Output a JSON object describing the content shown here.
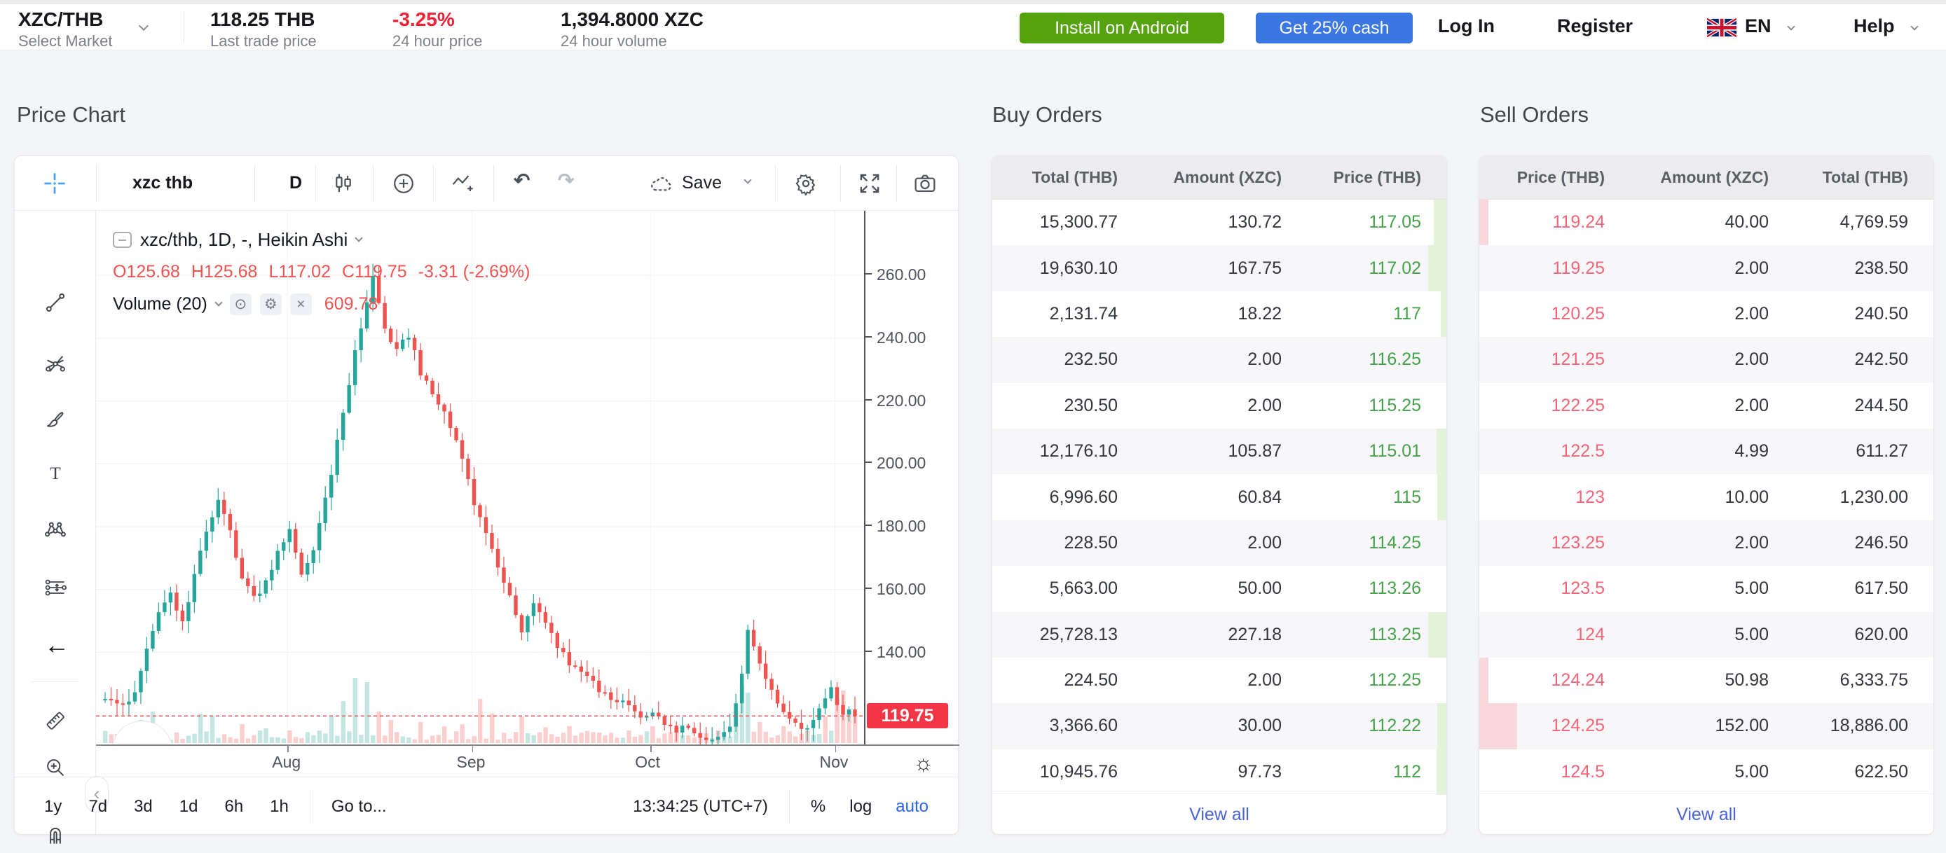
{
  "header": {
    "pair": "XZC/THB",
    "select_market": "Select Market",
    "last_price": "118.25 THB",
    "last_price_label": "Last trade price",
    "change": "-3.25%",
    "change_label": "24 hour price",
    "volume": "1,394.8000 XZC",
    "volume_label": "24 hour volume",
    "install_button": "Install on Android",
    "cash_button": "Get 25% cash",
    "login": "Log In",
    "register": "Register",
    "language": "EN",
    "help": "Help"
  },
  "sections": {
    "price_chart": "Price Chart",
    "buy_orders": "Buy Orders",
    "sell_orders": "Sell Orders"
  },
  "chart": {
    "toolbar": {
      "symbol": "xzc thb",
      "interval": "D",
      "save": "Save"
    },
    "legend": {
      "series": "xzc/thb, 1D, -, Heikin Ashi",
      "o": "O125.68",
      "h": "H125.68",
      "l": "L117.02",
      "c": "C119.75",
      "change": "-3.31 (-2.69%)",
      "volume_label": "Volume (20)",
      "volume_value": "609.78"
    },
    "bottom": {
      "ranges": [
        "1y",
        "7d",
        "3d",
        "1d",
        "6h",
        "1h"
      ],
      "goto": "Go to...",
      "clock": "13:34:25 (UTC+7)",
      "percent": "%",
      "log": "log",
      "auto": "auto"
    }
  },
  "chart_data": {
    "type": "candlestick",
    "title": "xzc/thb, 1D, Heikin Ashi",
    "ylabel": "Price (THB)",
    "y_ticks": [
      260,
      240,
      220,
      200,
      180,
      160,
      140
    ],
    "price_top": 280.5,
    "price_bottom": 110.7,
    "last_price": 119.75,
    "last_price_label": "119.75",
    "x_months": [
      "Aug",
      "Sep",
      "Oct",
      "Nov"
    ],
    "month_start_indices": [
      31,
      62,
      92,
      123
    ],
    "n_candles": 127,
    "price_path": [
      [
        0,
        125
      ],
      [
        3,
        124
      ],
      [
        5,
        127
      ],
      [
        7,
        141
      ],
      [
        9,
        153
      ],
      [
        11,
        158
      ],
      [
        13,
        150
      ],
      [
        15,
        164
      ],
      [
        17,
        179
      ],
      [
        19,
        189
      ],
      [
        21,
        179
      ],
      [
        23,
        163
      ],
      [
        25,
        157
      ],
      [
        27,
        162
      ],
      [
        29,
        172
      ],
      [
        31,
        179
      ],
      [
        33,
        165
      ],
      [
        35,
        172
      ],
      [
        38,
        197
      ],
      [
        40,
        216
      ],
      [
        42,
        235
      ],
      [
        44,
        251
      ],
      [
        45,
        260
      ],
      [
        47,
        243
      ],
      [
        49,
        236
      ],
      [
        51,
        241
      ],
      [
        53,
        229
      ],
      [
        55,
        223
      ],
      [
        57,
        217
      ],
      [
        59,
        208
      ],
      [
        61,
        195
      ],
      [
        62,
        187
      ],
      [
        64,
        177
      ],
      [
        66,
        167
      ],
      [
        68,
        158
      ],
      [
        70,
        147
      ],
      [
        72,
        156
      ],
      [
        74,
        149
      ],
      [
        76,
        141
      ],
      [
        78,
        137
      ],
      [
        80,
        135
      ],
      [
        82,
        130
      ],
      [
        84,
        127
      ],
      [
        86,
        125
      ],
      [
        88,
        122
      ],
      [
        90,
        120
      ],
      [
        92,
        121
      ],
      [
        94,
        117
      ],
      [
        96,
        115
      ],
      [
        98,
        116
      ],
      [
        100,
        114
      ],
      [
        103,
        112
      ],
      [
        105,
        116
      ],
      [
        107,
        133
      ],
      [
        108,
        146
      ],
      [
        110,
        137
      ],
      [
        112,
        127
      ],
      [
        114,
        121
      ],
      [
        116,
        117
      ],
      [
        118,
        115
      ],
      [
        120,
        123
      ],
      [
        122,
        128
      ],
      [
        124,
        120
      ],
      [
        125,
        123
      ],
      [
        126,
        119.75
      ]
    ],
    "volume_spikes": [
      [
        6,
        0.22,
        1
      ],
      [
        8,
        0.3,
        1
      ],
      [
        16,
        0.28,
        1
      ],
      [
        18,
        0.26,
        1
      ],
      [
        23,
        0.18,
        0
      ],
      [
        27,
        0.14,
        1
      ],
      [
        31,
        0.12,
        0
      ],
      [
        38,
        0.25,
        1
      ],
      [
        40,
        0.4,
        1
      ],
      [
        42,
        0.62,
        1
      ],
      [
        44,
        0.58,
        1
      ],
      [
        46,
        0.3,
        0
      ],
      [
        48,
        0.22,
        0
      ],
      [
        53,
        0.2,
        0
      ],
      [
        57,
        0.16,
        0
      ],
      [
        60,
        0.18,
        0
      ],
      [
        63,
        0.42,
        0
      ],
      [
        65,
        0.28,
        0
      ],
      [
        70,
        0.25,
        0
      ],
      [
        74,
        0.15,
        0
      ],
      [
        78,
        0.16,
        0
      ],
      [
        83,
        0.1,
        0
      ],
      [
        88,
        0.12,
        0
      ],
      [
        92,
        0.16,
        0
      ],
      [
        96,
        0.14,
        0
      ],
      [
        100,
        0.1,
        0
      ],
      [
        103,
        0.12,
        0
      ],
      [
        106,
        0.3,
        1
      ],
      [
        107,
        0.55,
        1
      ],
      [
        108,
        0.48,
        1
      ],
      [
        110,
        0.2,
        0
      ],
      [
        114,
        0.16,
        0
      ],
      [
        118,
        0.12,
        0
      ],
      [
        121,
        0.25,
        0
      ],
      [
        123,
        0.42,
        0
      ],
      [
        124,
        0.5,
        0
      ],
      [
        125,
        0.32,
        0
      ],
      [
        126,
        0.28,
        0
      ]
    ],
    "colors": {
      "up": "#26a69a",
      "down": "#ef5350",
      "vol_up": "rgba(38,166,154,0.28)",
      "vol_down": "rgba(239,83,80,0.28)",
      "grid": "#eef2f8",
      "price_line": "#ef5350",
      "price_tag_bg": "#f23645"
    }
  },
  "buy_orders": {
    "headers": [
      "Total (THB)",
      "Amount (XZC)",
      "Price (THB)"
    ],
    "price_col": 2,
    "rows": [
      {
        "cells": [
          "15,300.77",
          "130.72",
          "117.05"
        ],
        "depth": 18
      },
      {
        "cells": [
          "19,630.10",
          "167.75",
          "117.02"
        ],
        "depth": 26
      },
      {
        "cells": [
          "2,131.74",
          "18.22",
          "117"
        ],
        "depth": 8
      },
      {
        "cells": [
          "232.50",
          "2.00",
          "116.25"
        ],
        "depth": 0
      },
      {
        "cells": [
          "230.50",
          "2.00",
          "115.25"
        ],
        "depth": 0
      },
      {
        "cells": [
          "12,176.10",
          "105.87",
          "115.01"
        ],
        "depth": 14
      },
      {
        "cells": [
          "6,996.60",
          "60.84",
          "115"
        ],
        "depth": 13
      },
      {
        "cells": [
          "228.50",
          "2.00",
          "114.25"
        ],
        "depth": 0
      },
      {
        "cells": [
          "5,663.00",
          "50.00",
          "113.26"
        ],
        "depth": 0
      },
      {
        "cells": [
          "25,728.13",
          "227.18",
          "113.25"
        ],
        "depth": 26
      },
      {
        "cells": [
          "224.50",
          "2.00",
          "112.25"
        ],
        "depth": 0
      },
      {
        "cells": [
          "3,366.60",
          "30.00",
          "112.22"
        ],
        "depth": 13
      },
      {
        "cells": [
          "10,945.76",
          "97.73",
          "112"
        ],
        "depth": 14
      }
    ],
    "view_all": "View all"
  },
  "sell_orders": {
    "headers": [
      "Price (THB)",
      "Amount (XZC)",
      "Total (THB)"
    ],
    "price_col": 0,
    "rows": [
      {
        "cells": [
          "119.24",
          "40.00",
          "4,769.59"
        ],
        "depth": 13
      },
      {
        "cells": [
          "119.25",
          "2.00",
          "238.50"
        ],
        "depth": 0
      },
      {
        "cells": [
          "120.25",
          "2.00",
          "240.50"
        ],
        "depth": 0
      },
      {
        "cells": [
          "121.25",
          "2.00",
          "242.50"
        ],
        "depth": 0
      },
      {
        "cells": [
          "122.25",
          "2.00",
          "244.50"
        ],
        "depth": 0
      },
      {
        "cells": [
          "122.5",
          "4.99",
          "611.27"
        ],
        "depth": 0
      },
      {
        "cells": [
          "123",
          "10.00",
          "1,230.00"
        ],
        "depth": 0
      },
      {
        "cells": [
          "123.25",
          "2.00",
          "246.50"
        ],
        "depth": 0
      },
      {
        "cells": [
          "123.5",
          "5.00",
          "617.50"
        ],
        "depth": 0
      },
      {
        "cells": [
          "124",
          "5.00",
          "620.00"
        ],
        "depth": 0
      },
      {
        "cells": [
          "124.24",
          "50.98",
          "6,333.75"
        ],
        "depth": 13
      },
      {
        "cells": [
          "124.25",
          "152.00",
          "18,886.00"
        ],
        "depth": 54
      },
      {
        "cells": [
          "124.5",
          "5.00",
          "622.50"
        ],
        "depth": 0
      }
    ],
    "view_all": "View all"
  }
}
